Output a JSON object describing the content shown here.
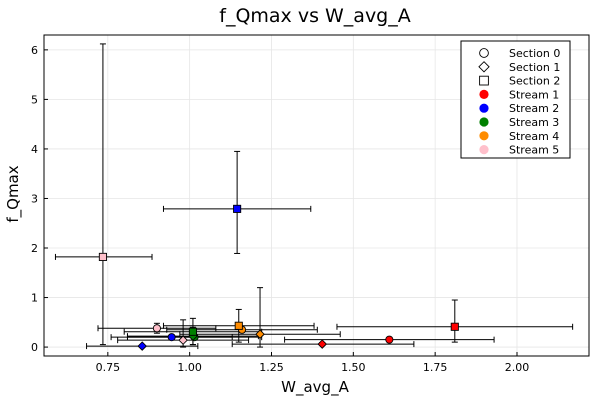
{
  "chart_data": {
    "type": "scatter",
    "title": "f_Qmax vs W_avg_A",
    "xlabel": "W_avg_A",
    "ylabel": "f_Qmax",
    "xlim": [
      0.555,
      2.22
    ],
    "ylim": [
      -0.18,
      6.3
    ],
    "xticks": [
      0.75,
      1.0,
      1.25,
      1.5,
      1.75,
      2.0
    ],
    "xtick_labels": [
      "0.75",
      "1.00",
      "1.25",
      "1.50",
      "1.75",
      "2.00"
    ],
    "yticks": [
      0,
      1,
      2,
      3,
      4,
      5,
      6
    ],
    "ytick_labels": [
      "0",
      "1",
      "2",
      "3",
      "4",
      "5",
      "6"
    ],
    "grid": true,
    "legend_position": "top-right",
    "legend": [
      {
        "label": "Section 0",
        "kind": "marker",
        "shape": "circle"
      },
      {
        "label": "Section 1",
        "kind": "marker",
        "shape": "diamond"
      },
      {
        "label": "Section 2",
        "kind": "marker",
        "shape": "square"
      },
      {
        "label": "Stream 1",
        "kind": "color",
        "color": "#ff0000"
      },
      {
        "label": "Stream 2",
        "kind": "color",
        "color": "#0000ff"
      },
      {
        "label": "Stream 3",
        "kind": "color",
        "color": "#008000"
      },
      {
        "label": "Stream 4",
        "kind": "color",
        "color": "#ff8c00"
      },
      {
        "label": "Stream 5",
        "kind": "color",
        "color": "#ffc0cb"
      }
    ],
    "points": [
      {
        "stream": "Stream 1",
        "section": 0,
        "shape": "circle",
        "color": "#ff0000",
        "x": 1.61,
        "y": 0.15,
        "xerr": [
          1.29,
          1.93
        ],
        "yerr": [
          0.12,
          0.18
        ]
      },
      {
        "stream": "Stream 1",
        "section": 1,
        "shape": "diamond",
        "color": "#ff0000",
        "x": 1.405,
        "y": 0.06,
        "xerr": [
          1.13,
          1.685
        ],
        "yerr": [
          0.04,
          0.09
        ]
      },
      {
        "stream": "Stream 1",
        "section": 2,
        "shape": "square",
        "color": "#ff0000",
        "x": 1.81,
        "y": 0.41,
        "xerr": [
          1.45,
          2.17
        ],
        "yerr": [
          0.1,
          0.95
        ]
      },
      {
        "stream": "Stream 2",
        "section": 0,
        "shape": "circle",
        "color": "#0000ff",
        "x": 0.945,
        "y": 0.2,
        "xerr": [
          0.76,
          1.13
        ],
        "yerr": [
          0.17,
          0.23
        ]
      },
      {
        "stream": "Stream 2",
        "section": 1,
        "shape": "diamond",
        "color": "#0000ff",
        "x": 0.855,
        "y": 0.02,
        "xerr": [
          0.685,
          1.025
        ],
        "yerr": [
          0.0,
          0.04
        ]
      },
      {
        "stream": "Stream 2",
        "section": 2,
        "shape": "square",
        "color": "#0000ff",
        "x": 1.145,
        "y": 2.79,
        "xerr": [
          0.92,
          1.37
        ],
        "yerr": [
          1.89,
          3.95
        ]
      },
      {
        "stream": "Stream 3",
        "section": 0,
        "shape": "circle",
        "color": "#008000",
        "x": 1.015,
        "y": 0.2,
        "xerr": [
          0.81,
          1.22
        ],
        "yerr": [
          0.17,
          0.23
        ]
      },
      {
        "stream": "Stream 3",
        "section": 1,
        "shape": "diamond",
        "color": "#008000",
        "x": 1.01,
        "y": 0.22,
        "xerr": [
          0.81,
          1.21
        ],
        "yerr": [
          0.05,
          0.4
        ]
      },
      {
        "stream": "Stream 3",
        "section": 2,
        "shape": "square",
        "color": "#008000",
        "x": 1.01,
        "y": 0.31,
        "xerr": [
          0.8,
          1.22
        ],
        "yerr": [
          0.05,
          0.58
        ]
      },
      {
        "stream": "Stream 4",
        "section": 0,
        "shape": "circle",
        "color": "#ff8c00",
        "x": 1.16,
        "y": 0.35,
        "xerr": [
          0.93,
          1.39
        ],
        "yerr": [
          0.3,
          0.4
        ]
      },
      {
        "stream": "Stream 4",
        "section": 1,
        "shape": "diamond",
        "color": "#ff8c00",
        "x": 1.215,
        "y": 0.26,
        "xerr": [
          0.97,
          1.46
        ],
        "yerr": [
          0.0,
          1.2
        ]
      },
      {
        "stream": "Stream 4",
        "section": 2,
        "shape": "square",
        "color": "#ff8c00",
        "x": 1.15,
        "y": 0.43,
        "xerr": [
          0.92,
          1.38
        ],
        "yerr": [
          0.1,
          0.76
        ]
      },
      {
        "stream": "Stream 5",
        "section": 0,
        "shape": "circle",
        "color": "#ffc0cb",
        "x": 0.9,
        "y": 0.38,
        "xerr": [
          0.72,
          1.08
        ],
        "yerr": [
          0.28,
          0.48
        ]
      },
      {
        "stream": "Stream 5",
        "section": 1,
        "shape": "diamond",
        "color": "#ffc0cb",
        "x": 0.98,
        "y": 0.14,
        "xerr": [
          0.78,
          1.18
        ],
        "yerr": [
          0.0,
          0.55
        ]
      },
      {
        "stream": "Stream 5",
        "section": 2,
        "shape": "square",
        "color": "#ffc0cb",
        "x": 0.735,
        "y": 1.82,
        "xerr": [
          0.59,
          0.885
        ],
        "yerr": [
          0.05,
          6.12
        ]
      }
    ]
  }
}
